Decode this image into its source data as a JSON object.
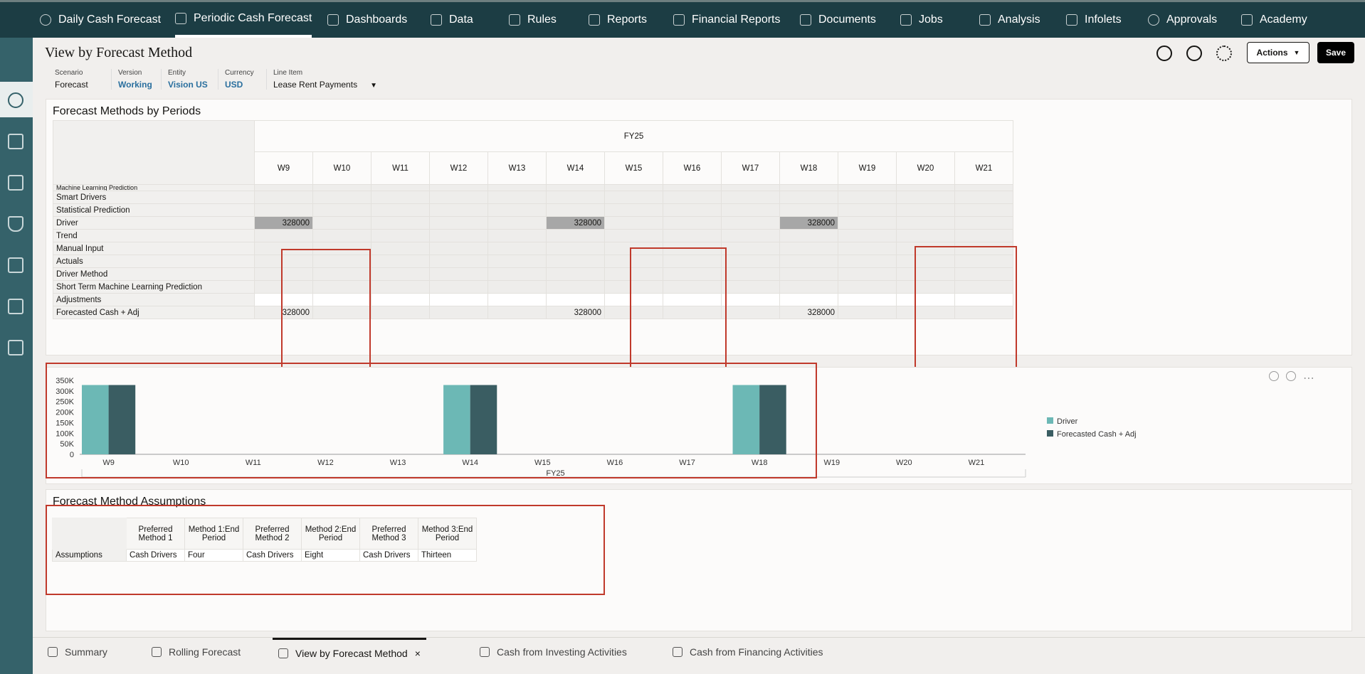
{
  "nav": {
    "items": [
      {
        "label": "Daily Cash Forecast",
        "icon": "currency-icon"
      },
      {
        "label": "Periodic Cash Forecast",
        "icon": "calendar-icon"
      },
      {
        "label": "Dashboards",
        "icon": "monitor-icon"
      },
      {
        "label": "Data",
        "icon": "list-icon"
      },
      {
        "label": "Rules",
        "icon": "grid-icon"
      },
      {
        "label": "Reports",
        "icon": "report-icon"
      },
      {
        "label": "Financial Reports",
        "icon": "financial-report-icon"
      },
      {
        "label": "Documents",
        "icon": "document-icon"
      },
      {
        "label": "Jobs",
        "icon": "clipboard-icon"
      },
      {
        "label": "Analysis",
        "icon": "analysis-icon"
      },
      {
        "label": "Infolets",
        "icon": "infolet-icon"
      },
      {
        "label": "Approvals",
        "icon": "approvals-icon"
      },
      {
        "label": "Academy",
        "icon": "academy-icon"
      }
    ]
  },
  "page": {
    "title": "View by Forecast Method",
    "pov": [
      {
        "label": "Scenario",
        "value": "Forecast"
      },
      {
        "label": "Version",
        "value": "Working"
      },
      {
        "label": "Entity",
        "value": "Vision US"
      },
      {
        "label": "Currency",
        "value": "USD"
      },
      {
        "label": "Line Item",
        "value": "Lease Rent Payments"
      }
    ],
    "actions_label": "Actions",
    "save_label": "Save"
  },
  "grid": {
    "title": "Forecast Methods by Periods",
    "year": "FY25",
    "weeks": [
      "W9",
      "W10",
      "W11",
      "W12",
      "W13",
      "W14",
      "W15",
      "W16",
      "W17",
      "W18",
      "W19",
      "W20",
      "W21"
    ],
    "partial_row": "Machine Learning Prediction",
    "rows": [
      {
        "label": "Smart Drivers",
        "values": [
          "",
          "",
          "",
          "",
          "",
          "",
          "",
          "",
          "",
          "",
          "",
          "",
          ""
        ]
      },
      {
        "label": "Statistical Prediction",
        "values": [
          "",
          "",
          "",
          "",
          "",
          "",
          "",
          "",
          "",
          "",
          "",
          "",
          ""
        ]
      },
      {
        "label": "Driver",
        "values": [
          "328000",
          "",
          "",
          "",
          "",
          "328000",
          "",
          "",
          "",
          "328000",
          "",
          "",
          ""
        ]
      },
      {
        "label": "Trend",
        "values": [
          "",
          "",
          "",
          "",
          "",
          "",
          "",
          "",
          "",
          "",
          "",
          "",
          ""
        ]
      },
      {
        "label": "Manual Input",
        "values": [
          "",
          "",
          "",
          "",
          "",
          "",
          "",
          "",
          "",
          "",
          "",
          "",
          ""
        ]
      },
      {
        "label": "Actuals",
        "values": [
          "",
          "",
          "",
          "",
          "",
          "",
          "",
          "",
          "",
          "",
          "",
          "",
          ""
        ]
      },
      {
        "label": "Driver Method",
        "values": [
          "",
          "",
          "",
          "",
          "",
          "",
          "",
          "",
          "",
          "",
          "",
          "",
          ""
        ]
      },
      {
        "label": "Short Term Machine Learning Prediction",
        "values": [
          "",
          "",
          "",
          "",
          "",
          "",
          "",
          "",
          "",
          "",
          "",
          "",
          ""
        ]
      },
      {
        "label": "Adjustments",
        "values": [
          "",
          "",
          "",
          "",
          "",
          "",
          "",
          "",
          "",
          "",
          "",
          "",
          ""
        ]
      },
      {
        "label": "Forecasted Cash + Adj",
        "values": [
          "328000",
          "",
          "",
          "",
          "",
          "328000",
          "",
          "",
          "",
          "328000",
          "",
          "",
          ""
        ]
      }
    ]
  },
  "chart_data": {
    "type": "bar",
    "title": "",
    "categories": [
      "W9",
      "W10",
      "W11",
      "W12",
      "W13",
      "W14",
      "W15",
      "W16",
      "W17",
      "W18",
      "W19",
      "W20",
      "W21"
    ],
    "xgroup_label": "FY25",
    "yticks": [
      "0",
      "50K",
      "100K",
      "150K",
      "200K",
      "250K",
      "300K",
      "350K"
    ],
    "ylim": [
      0,
      350000
    ],
    "series": [
      {
        "name": "Driver",
        "color": "#6cb8b5",
        "values": [
          328000,
          0,
          0,
          0,
          0,
          328000,
          0,
          0,
          0,
          328000,
          0,
          0,
          0
        ]
      },
      {
        "name": "Forecasted Cash + Adj",
        "color": "#3a5d62",
        "values": [
          328000,
          0,
          0,
          0,
          0,
          328000,
          0,
          0,
          0,
          328000,
          0,
          0,
          0
        ]
      }
    ],
    "legend_position": "right"
  },
  "assumptions": {
    "title": "Forecast Method Assumptions",
    "headers": [
      "Preferred Method 1",
      "Method 1:End Period",
      "Preferred Method 2",
      "Method 2:End Period",
      "Preferred Method 3",
      "Method 3:End Period"
    ],
    "row_label": "Assumptions",
    "values": [
      "Cash Drivers",
      "Four",
      "Cash Drivers",
      "Eight",
      "Cash Drivers",
      "Thirteen"
    ]
  },
  "bottom_tabs": [
    {
      "label": "Summary"
    },
    {
      "label": "Rolling Forecast"
    },
    {
      "label": "View by Forecast Method",
      "close": "×"
    },
    {
      "label": "Cash from Investing Activities"
    },
    {
      "label": "Cash from Financing Activities"
    }
  ]
}
